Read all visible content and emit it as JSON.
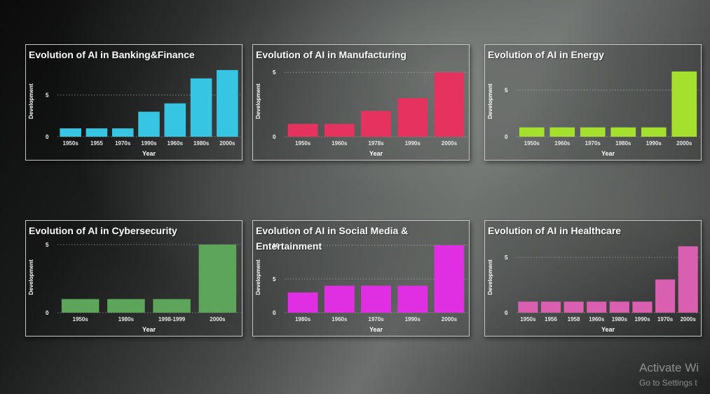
{
  "watermark": {
    "line1": "Activate Wi",
    "line2": "Go to Settings t"
  },
  "chart_data": [
    {
      "type": "bar",
      "title": "Evolution of AI in Banking&Finance",
      "xlabel": "Year",
      "ylabel": "Development",
      "categories": [
        "1950s",
        "1955",
        "1970s",
        "1990s",
        "1960s",
        "1980s",
        "2000s"
      ],
      "values": [
        1,
        1,
        1,
        3,
        4,
        7,
        8
      ],
      "yticks": [
        0,
        5
      ],
      "ylim": [
        0,
        8.5
      ],
      "color": "#36c6e4"
    },
    {
      "type": "bar",
      "title": "Evolution of AI in Manufacturing",
      "xlabel": "Year",
      "ylabel": "Development",
      "categories": [
        "1950s",
        "1960s",
        "1978s",
        "1990s",
        "2000s"
      ],
      "values": [
        1,
        1,
        2,
        3,
        5
      ],
      "yticks": [
        0,
        5
      ],
      "ylim": [
        0,
        5.5
      ],
      "color": "#e4335e"
    },
    {
      "type": "bar",
      "title": "Evolution of AI in Energy",
      "xlabel": "Year",
      "ylabel": "Development",
      "categories": [
        "1950s",
        "1960s",
        "1970s",
        "1980s",
        "1990s",
        "2000s"
      ],
      "values": [
        1,
        1,
        1,
        1,
        1,
        7
      ],
      "yticks": [
        0,
        5
      ],
      "ylim": [
        0,
        7.6
      ],
      "color": "#a6e02e"
    },
    {
      "type": "bar",
      "title": "Evolution of AI in Cybersecurity",
      "xlabel": "Year",
      "ylabel": "Development",
      "categories": [
        "1950s",
        "1980s",
        "1998-1999",
        "2000s"
      ],
      "values": [
        1,
        1,
        1,
        5
      ],
      "yticks": [
        0,
        5
      ],
      "ylim": [
        0,
        5.2
      ],
      "color": "#5da55a"
    },
    {
      "type": "bar",
      "title": "Evolution of AI in Social Media & Entertainment",
      "xlabel": "Year",
      "ylabel": "Development",
      "categories": [
        "1980s",
        "1960s",
        "1970s",
        "1990s",
        "2000s"
      ],
      "values": [
        3,
        4,
        4,
        4,
        10
      ],
      "yticks": [
        0,
        5,
        10
      ],
      "ylim": [
        0,
        10.5
      ],
      "color": "#e02fe2"
    },
    {
      "type": "bar",
      "title": "Evolution of AI in Healthcare",
      "xlabel": "Year",
      "ylabel": "Development",
      "categories": [
        "1950s",
        "1956",
        "1958",
        "1960s",
        "1980s",
        "1990s",
        "1970s",
        "2000s"
      ],
      "values": [
        1,
        1,
        1,
        1,
        1,
        1,
        3,
        6
      ],
      "yticks": [
        0,
        5
      ],
      "ylim": [
        0,
        6.4
      ],
      "color": "#d960b0"
    }
  ]
}
